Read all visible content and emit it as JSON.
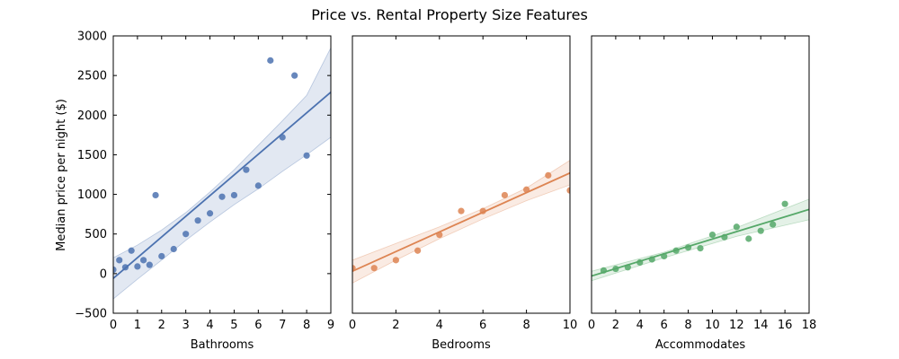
{
  "chart_data": {
    "title": "Price vs. Rental Property Size Features",
    "ylabel": "Median price per night ($)",
    "ylim": [
      -500,
      3000
    ],
    "yticks": [
      -500,
      0,
      500,
      1000,
      1500,
      2000,
      2500,
      3000
    ],
    "ytick_labels": [
      "−500",
      "0",
      "500",
      "1000",
      "1500",
      "2000",
      "2500",
      "3000"
    ],
    "panels": [
      {
        "type": "scatter",
        "xlabel": "Bathrooms",
        "xlim": [
          0,
          9
        ],
        "xticks": [
          0,
          1,
          2,
          3,
          4,
          5,
          6,
          7,
          8,
          9
        ],
        "color": "#4c72b0",
        "points": [
          {
            "x": 0,
            "y": 50
          },
          {
            "x": 0.25,
            "y": 170
          },
          {
            "x": 0.5,
            "y": 80
          },
          {
            "x": 0.75,
            "y": 290
          },
          {
            "x": 1,
            "y": 90
          },
          {
            "x": 1.25,
            "y": 170
          },
          {
            "x": 1.5,
            "y": 110
          },
          {
            "x": 1.75,
            "y": 990
          },
          {
            "x": 2,
            "y": 220
          },
          {
            "x": 2.5,
            "y": 310
          },
          {
            "x": 3,
            "y": 500
          },
          {
            "x": 3.5,
            "y": 670
          },
          {
            "x": 4,
            "y": 760
          },
          {
            "x": 4.5,
            "y": 970
          },
          {
            "x": 5,
            "y": 990
          },
          {
            "x": 5.5,
            "y": 1310
          },
          {
            "x": 6,
            "y": 1110
          },
          {
            "x": 6.5,
            "y": 2690
          },
          {
            "x": 7,
            "y": 1720
          },
          {
            "x": 7.5,
            "y": 2500
          },
          {
            "x": 8,
            "y": 1490
          }
        ],
        "fit": {
          "x0": 0,
          "y0": -60,
          "x1": 9,
          "y1": 2290
        },
        "ci": {
          "x": [
            0,
            1,
            2,
            3,
            4,
            5,
            6,
            7,
            8,
            9
          ],
          "lower": [
            -320,
            -70,
            170,
            420,
            650,
            870,
            1070,
            1290,
            1500,
            1720
          ],
          "upper": [
            200,
            360,
            550,
            770,
            1030,
            1310,
            1620,
            1930,
            2250,
            2850
          ]
        }
      },
      {
        "type": "scatter",
        "xlabel": "Bedrooms",
        "xlim": [
          0,
          10
        ],
        "xticks": [
          0,
          2,
          4,
          6,
          8,
          10
        ],
        "color": "#dd8452",
        "points": [
          {
            "x": 0,
            "y": 70
          },
          {
            "x": 1,
            "y": 70
          },
          {
            "x": 2,
            "y": 170
          },
          {
            "x": 3,
            "y": 290
          },
          {
            "x": 4,
            "y": 490
          },
          {
            "x": 5,
            "y": 790
          },
          {
            "x": 6,
            "y": 790
          },
          {
            "x": 7,
            "y": 990
          },
          {
            "x": 8,
            "y": 1060
          },
          {
            "x": 9,
            "y": 1240
          },
          {
            "x": 10,
            "y": 1050
          }
        ],
        "fit": {
          "x0": 0,
          "y0": 30,
          "x1": 10,
          "y1": 1270
        },
        "ci": {
          "x": [
            0,
            2,
            4,
            6,
            8,
            10
          ],
          "lower": [
            -120,
            170,
            440,
            690,
            920,
            1120
          ],
          "upper": [
            170,
            380,
            590,
            820,
            1080,
            1430
          ]
        }
      },
      {
        "type": "scatter",
        "xlabel": "Accommodates",
        "xlim": [
          0,
          18
        ],
        "xticks": [
          0,
          2,
          4,
          6,
          8,
          10,
          12,
          14,
          16,
          18
        ],
        "color": "#55a868",
        "points": [
          {
            "x": 1,
            "y": 40
          },
          {
            "x": 2,
            "y": 60
          },
          {
            "x": 3,
            "y": 80
          },
          {
            "x": 4,
            "y": 140
          },
          {
            "x": 5,
            "y": 180
          },
          {
            "x": 6,
            "y": 220
          },
          {
            "x": 7,
            "y": 290
          },
          {
            "x": 8,
            "y": 330
          },
          {
            "x": 9,
            "y": 320
          },
          {
            "x": 10,
            "y": 490
          },
          {
            "x": 11,
            "y": 460
          },
          {
            "x": 12,
            "y": 590
          },
          {
            "x": 13,
            "y": 440
          },
          {
            "x": 14,
            "y": 540
          },
          {
            "x": 15,
            "y": 620
          },
          {
            "x": 16,
            "y": 880
          }
        ],
        "fit": {
          "x0": 0,
          "y0": -30,
          "x1": 18,
          "y1": 810
        },
        "ci": {
          "x": [
            0,
            6,
            12,
            18
          ],
          "lower": [
            -90,
            200,
            470,
            680
          ],
          "upper": [
            30,
            270,
            580,
            940
          ]
        }
      }
    ]
  }
}
